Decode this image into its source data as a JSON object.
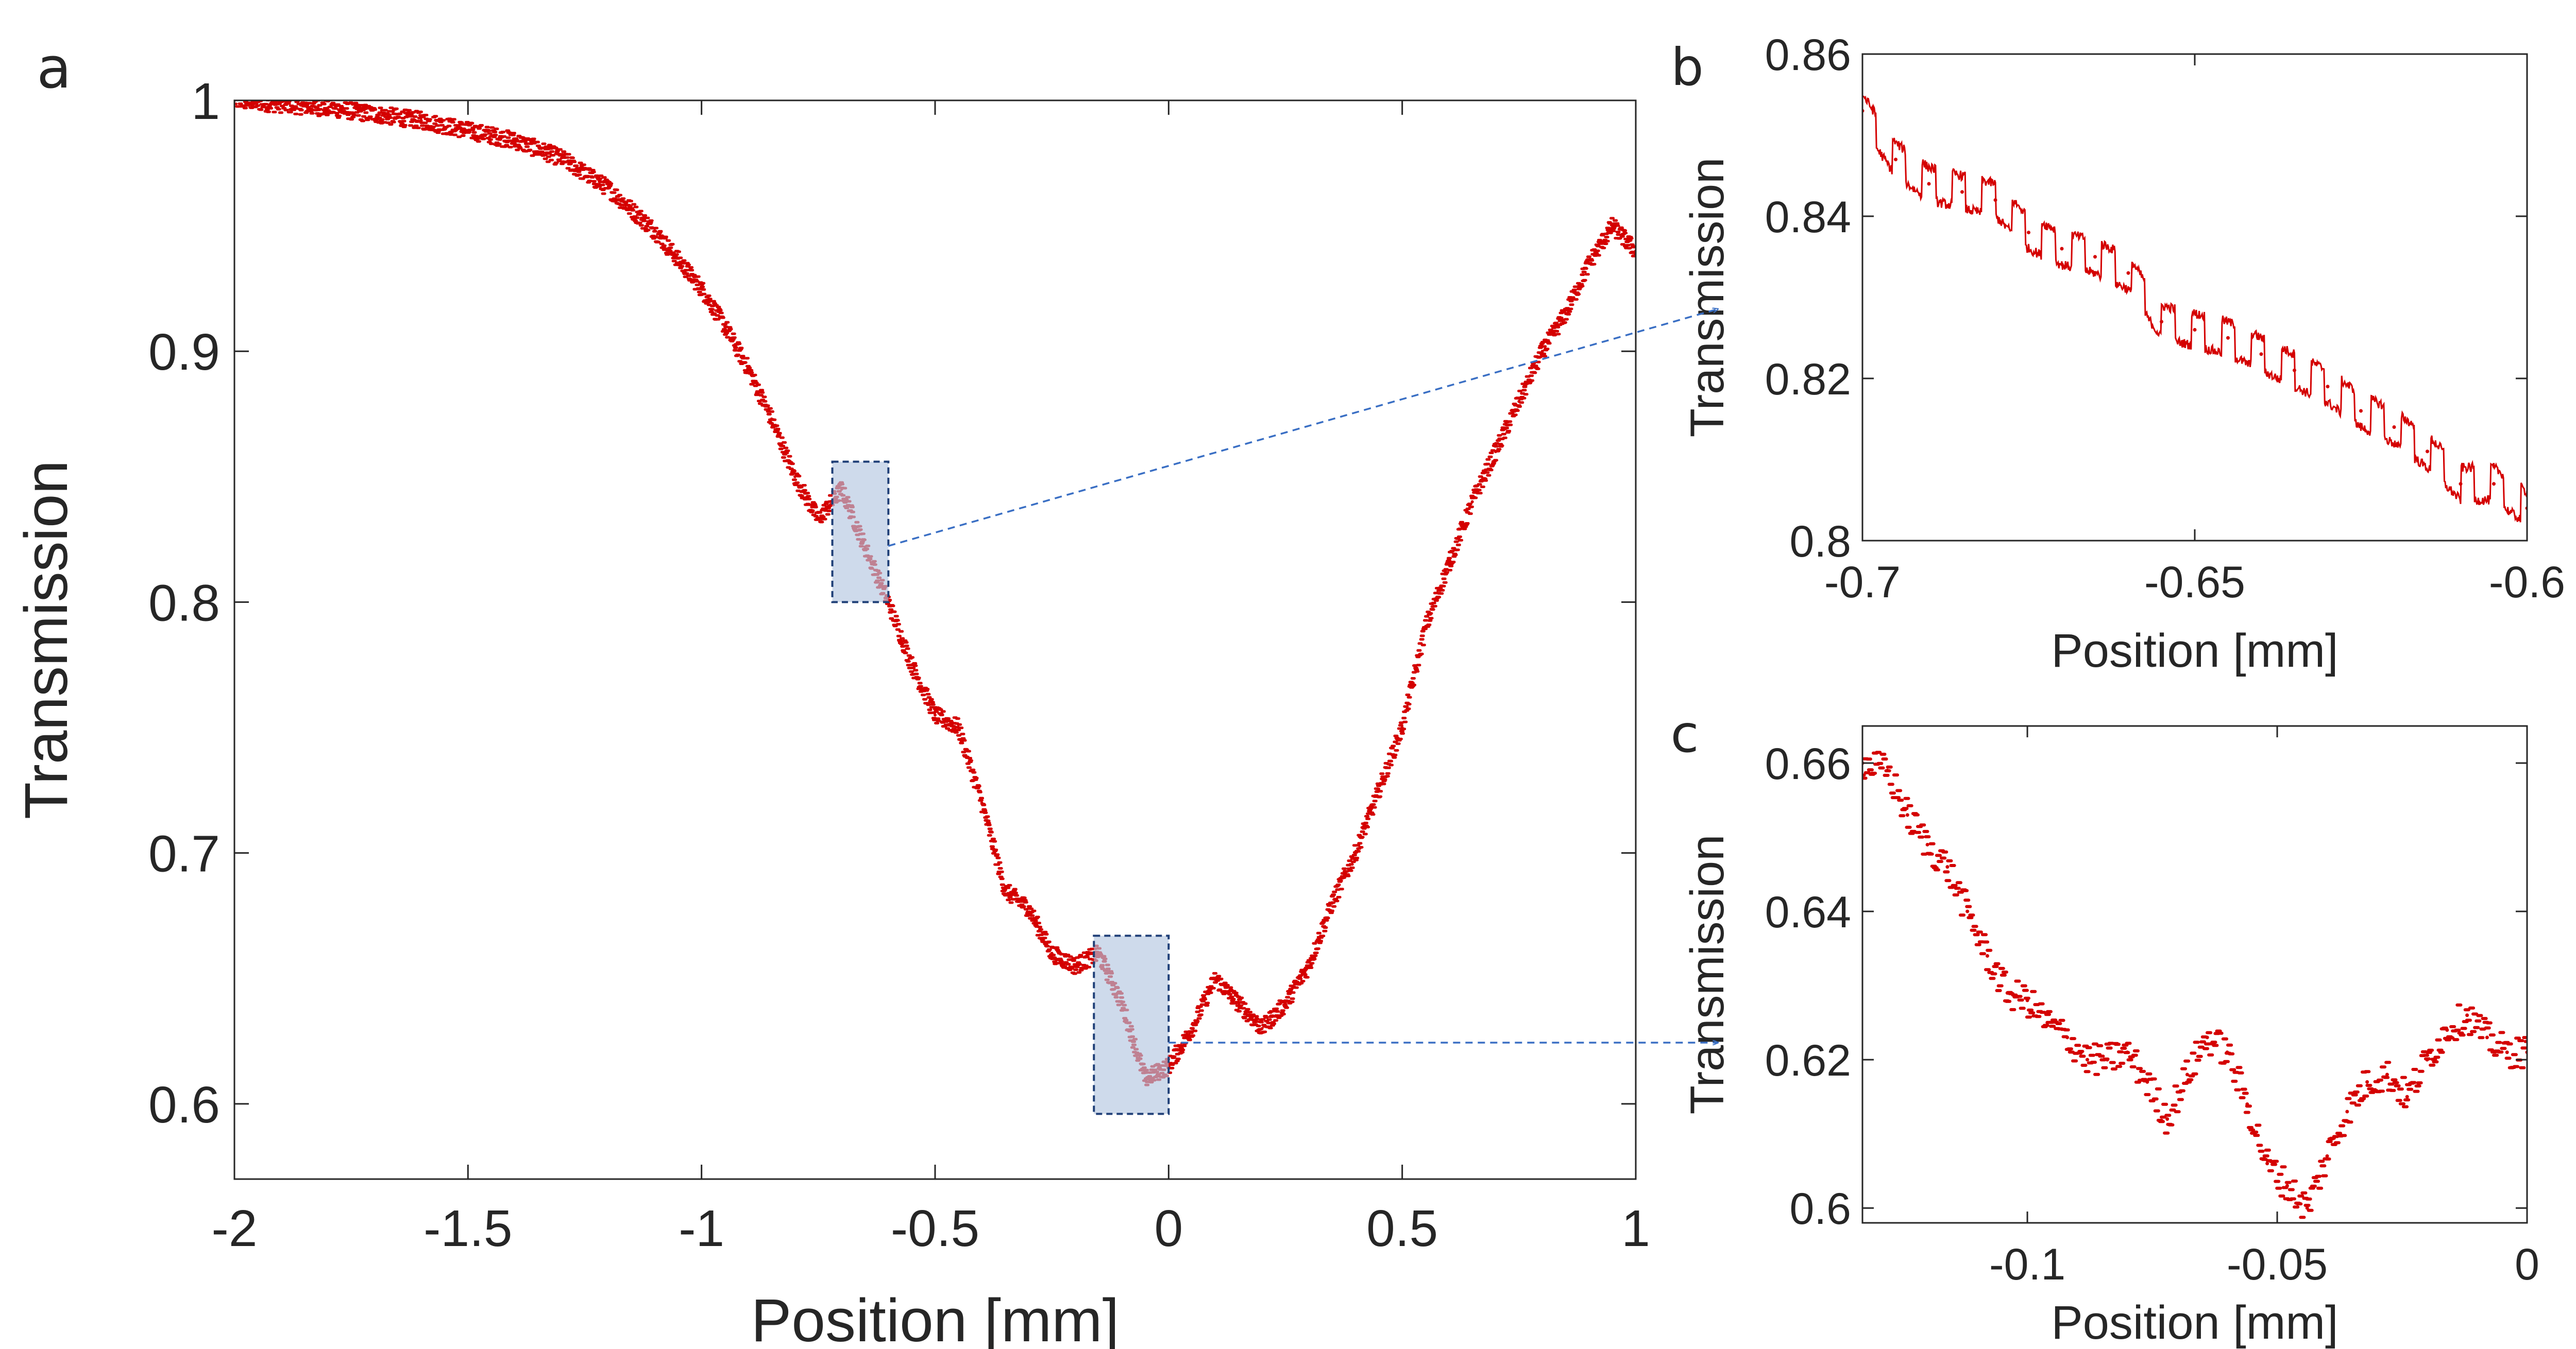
{
  "colors": {
    "trace": "#d40000",
    "axis": "#262626",
    "zoom_box_fill": "#b3c6e0",
    "zoom_box_stroke": "#1f3f77",
    "arrow": "#3a6fc4"
  },
  "chart_data": [
    {
      "id": "a",
      "panel_label": "a",
      "type": "scatter",
      "title": "",
      "xlabel": "Position [mm]",
      "ylabel": "Transmission",
      "xlim": [
        -2,
        1
      ],
      "ylim": [
        0.57,
        1
      ],
      "xticks": [
        -2,
        -1.5,
        -1,
        -0.5,
        0,
        0.5,
        1
      ],
      "xtick_labels": [
        "-2",
        "-1.5",
        "-1",
        "-0.5",
        "0",
        "0.5",
        "1"
      ],
      "yticks": [
        0.6,
        0.7,
        0.8,
        0.9,
        1
      ],
      "ytick_labels": [
        "0.6",
        "0.7",
        "0.8",
        "0.9",
        "1"
      ],
      "series": [
        {
          "name": "Transmission",
          "x": [
            -2.0,
            -1.8,
            -1.6,
            -1.4,
            -1.3,
            -1.2,
            -1.1,
            -1.0,
            -0.95,
            -0.9,
            -0.85,
            -0.8,
            -0.75,
            -0.7,
            -0.65,
            -0.6,
            -0.55,
            -0.5,
            -0.45,
            -0.4,
            -0.35,
            -0.3,
            -0.25,
            -0.2,
            -0.15,
            -0.1,
            -0.05,
            0.0,
            0.05,
            0.1,
            0.15,
            0.2,
            0.25,
            0.3,
            0.35,
            0.4,
            0.45,
            0.5,
            0.55,
            0.6,
            0.65,
            0.7,
            0.75,
            0.8,
            0.85,
            0.9,
            0.95,
            1.0
          ],
          "y": [
            1.0,
            0.997,
            0.992,
            0.984,
            0.977,
            0.965,
            0.948,
            0.925,
            0.91,
            0.893,
            0.873,
            0.85,
            0.833,
            0.845,
            0.822,
            0.8,
            0.775,
            0.755,
            0.75,
            0.72,
            0.685,
            0.678,
            0.66,
            0.655,
            0.66,
            0.64,
            0.61,
            0.615,
            0.63,
            0.65,
            0.64,
            0.63,
            0.64,
            0.655,
            0.68,
            0.7,
            0.725,
            0.75,
            0.79,
            0.815,
            0.84,
            0.86,
            0.88,
            0.9,
            0.915,
            0.935,
            0.95,
            0.94
          ]
        }
      ],
      "zoom_boxes": [
        {
          "x0": -0.72,
          "x1": -0.6,
          "y0": 0.8,
          "y1": 0.856,
          "target": "b"
        },
        {
          "x0": -0.16,
          "x1": 0.0,
          "y0": 0.596,
          "y1": 0.667,
          "target": "c"
        }
      ]
    },
    {
      "id": "b",
      "panel_label": "b",
      "type": "line",
      "title": "",
      "xlabel": "Position [mm]",
      "ylabel": "Transmission",
      "xlim": [
        -0.7,
        -0.6
      ],
      "ylim": [
        0.8,
        0.86
      ],
      "xticks": [
        -0.7,
        -0.65,
        -0.6
      ],
      "xtick_labels": [
        "-0.7",
        "-0.65",
        "-0.6"
      ],
      "yticks": [
        0.8,
        0.82,
        0.84,
        0.86
      ],
      "ytick_labels": [
        "0.8",
        "0.82",
        "0.84",
        "0.86"
      ],
      "series": [
        {
          "name": "Transmission",
          "x": [
            -0.7,
            -0.695,
            -0.69,
            -0.685,
            -0.68,
            -0.675,
            -0.67,
            -0.665,
            -0.66,
            -0.655,
            -0.65,
            -0.645,
            -0.64,
            -0.635,
            -0.63,
            -0.625,
            -0.62,
            -0.615,
            -0.61,
            -0.605,
            -0.6
          ],
          "y": [
            0.853,
            0.847,
            0.844,
            0.843,
            0.842,
            0.838,
            0.836,
            0.835,
            0.833,
            0.827,
            0.826,
            0.825,
            0.823,
            0.821,
            0.819,
            0.816,
            0.814,
            0.811,
            0.807,
            0.807,
            0.804
          ]
        }
      ]
    },
    {
      "id": "c",
      "panel_label": "c",
      "type": "scatter",
      "title": "",
      "xlabel": "Position [mm]",
      "ylabel": "Transmission",
      "xlim": [
        -0.133,
        0
      ],
      "ylim": [
        0.598,
        0.665
      ],
      "xticks": [
        -0.1,
        -0.05,
        0
      ],
      "xtick_labels": [
        "-0.1",
        "-0.05",
        "0"
      ],
      "yticks": [
        0.6,
        0.62,
        0.64,
        0.66
      ],
      "ytick_labels": [
        "0.6",
        "0.62",
        "0.64",
        "0.66"
      ],
      "series": [
        {
          "name": "Transmission",
          "x": [
            -0.133,
            -0.128,
            -0.124,
            -0.12,
            -0.116,
            -0.112,
            -0.108,
            -0.104,
            -0.1,
            -0.096,
            -0.092,
            -0.088,
            -0.084,
            -0.08,
            -0.076,
            -0.072,
            -0.068,
            -0.064,
            -0.06,
            -0.056,
            -0.052,
            -0.048,
            -0.044,
            -0.04,
            -0.036,
            -0.032,
            -0.028,
            -0.024,
            -0.02,
            -0.016,
            -0.012,
            -0.008,
            -0.004,
            0.0
          ],
          "y": [
            0.66,
            0.659,
            0.653,
            0.649,
            0.646,
            0.64,
            0.634,
            0.629,
            0.628,
            0.625,
            0.623,
            0.62,
            0.62,
            0.621,
            0.617,
            0.612,
            0.618,
            0.623,
            0.621,
            0.614,
            0.606,
            0.603,
            0.6,
            0.607,
            0.613,
            0.617,
            0.618,
            0.615,
            0.62,
            0.624,
            0.626,
            0.623,
            0.621,
            0.621
          ]
        }
      ]
    }
  ]
}
